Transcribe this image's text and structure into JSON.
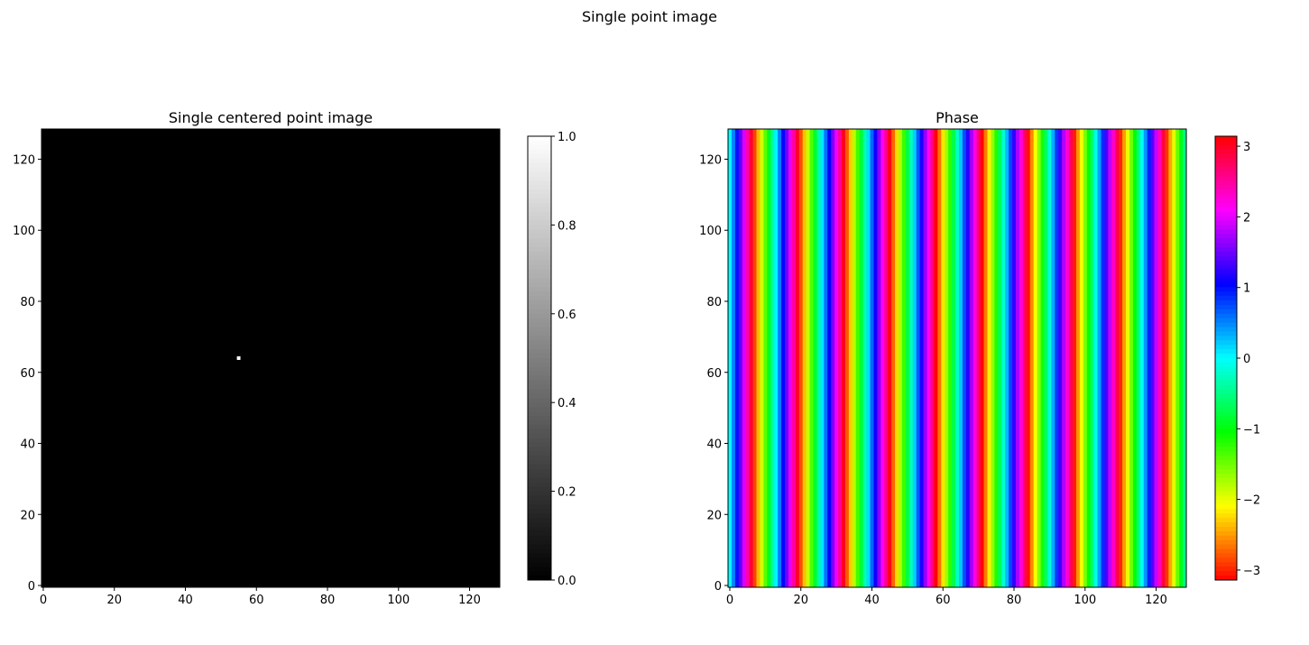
{
  "suptitle": "Single point image",
  "chart_data": [
    {
      "type": "heatmap",
      "title": "Single centered point image",
      "colormap": "gray",
      "shape": [
        129,
        129
      ],
      "background_value": 0,
      "points": [
        {
          "x": 55,
          "y": 65,
          "value": 1
        }
      ],
      "xlim": [
        -0.5,
        128.5
      ],
      "ylim": [
        128.5,
        -0.5
      ],
      "xticks": [
        0,
        20,
        40,
        60,
        80,
        100,
        120
      ],
      "yticks": [
        0,
        20,
        40,
        60,
        80,
        100,
        120
      ],
      "colorbar": {
        "range": [
          0,
          1
        ],
        "ticks": [
          "0.0",
          "0.2",
          "0.4",
          "0.6",
          "0.8",
          "1.0"
        ]
      }
    },
    {
      "type": "heatmap",
      "title": "Phase",
      "colormap": "hsv",
      "shape": [
        129,
        129
      ],
      "pattern": "vertical stripes: phase varies with column only",
      "column_phase": {
        "at_column_0": 0,
        "increment_per_column": 0.487
      },
      "xlim": [
        -0.5,
        128.5
      ],
      "ylim": [
        128.5,
        -0.5
      ],
      "xticks": [
        0,
        20,
        40,
        60,
        80,
        100,
        120
      ],
      "yticks": [
        0,
        20,
        40,
        60,
        80,
        100,
        120
      ],
      "colorbar": {
        "range": [
          -3.14159,
          3.14159
        ],
        "ticks": [
          "−3",
          "−2",
          "−1",
          "0",
          "1",
          "2",
          "3"
        ]
      }
    }
  ]
}
